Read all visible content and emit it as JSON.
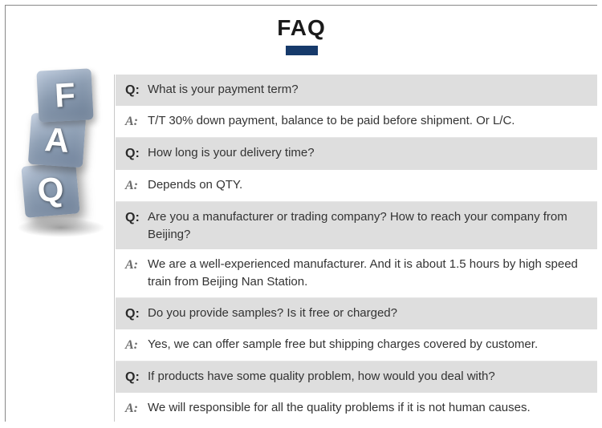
{
  "title": "FAQ",
  "accentColor": "#163a6b",
  "blocks": {
    "f": "F",
    "a": "A",
    "q": "Q"
  },
  "qLabel": "Q:",
  "aLabel": "A:",
  "items": [
    {
      "q": "What is your payment term?",
      "a": "T/T 30% down payment, balance to be paid before shipment. Or L/C."
    },
    {
      "q": "How long is your delivery time?",
      "a": "Depends on QTY."
    },
    {
      "q": "Are you a manufacturer or trading company? How to reach your company from Beijing?",
      "a": "We are a well-experienced manufacturer. And it is about 1.5 hours by high speed train from Beijing Nan Station."
    },
    {
      "q": "Do you provide samples? Is it free or charged?",
      "a": "Yes, we can offer sample free but shipping charges covered by customer."
    },
    {
      "q": "If products have some quality problem, how would you deal with?",
      "a": "We will responsible for all the quality problems if it is not human causes."
    }
  ]
}
